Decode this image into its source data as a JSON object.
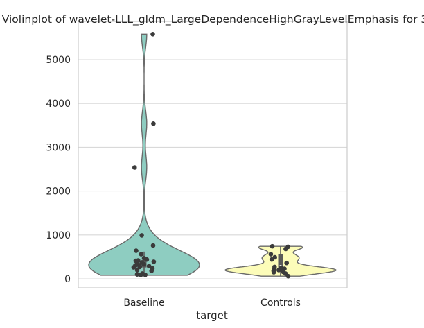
{
  "chart_data": {
    "type": "violin",
    "title": "Violinplot of wavelet-LLL_gldm_LargeDependenceHighGrayLevelEmphasis for 3",
    "xlabel": "target",
    "ylabel": "",
    "categories": [
      "Baseline",
      "Controls"
    ],
    "ylim": [
      -200,
      5800
    ],
    "yticks": [
      0,
      1000,
      2000,
      3000,
      4000,
      5000
    ],
    "ytick_labels": [
      "0",
      "1000",
      "2000",
      "3000",
      "4000",
      "5000"
    ],
    "grid": "horizontal",
    "colors": {
      "Baseline": "#8ecdc1",
      "Controls": "#fcfcb9",
      "points": "#3b3b3b",
      "violin_edge": "#6a6a6a",
      "grid": "#d9d9d9",
      "frame": "#cccccc"
    },
    "series": [
      {
        "category": "Baseline",
        "violin_range": [
          80,
          5580
        ],
        "box": {
          "q1": 260,
          "median": 330,
          "q3": 430,
          "whisker_low": 80,
          "whisker_high": 620
        },
        "points": [
          5580,
          3540,
          2540,
          990,
          760,
          640,
          560,
          470,
          440,
          420,
          410,
          390,
          370,
          350,
          330,
          310,
          300,
          290,
          280,
          270,
          260,
          240,
          200,
          180,
          120,
          100,
          90,
          90
        ]
      },
      {
        "category": "Controls",
        "violin_range": [
          60,
          740
        ],
        "box": {
          "q1": 170,
          "median": 280,
          "q3": 560,
          "whisker_low": 60,
          "whisker_high": 740
        },
        "points": [
          740,
          730,
          680,
          560,
          490,
          440,
          360,
          270,
          250,
          230,
          220,
          200,
          180,
          160,
          150,
          120,
          60
        ]
      }
    ]
  }
}
